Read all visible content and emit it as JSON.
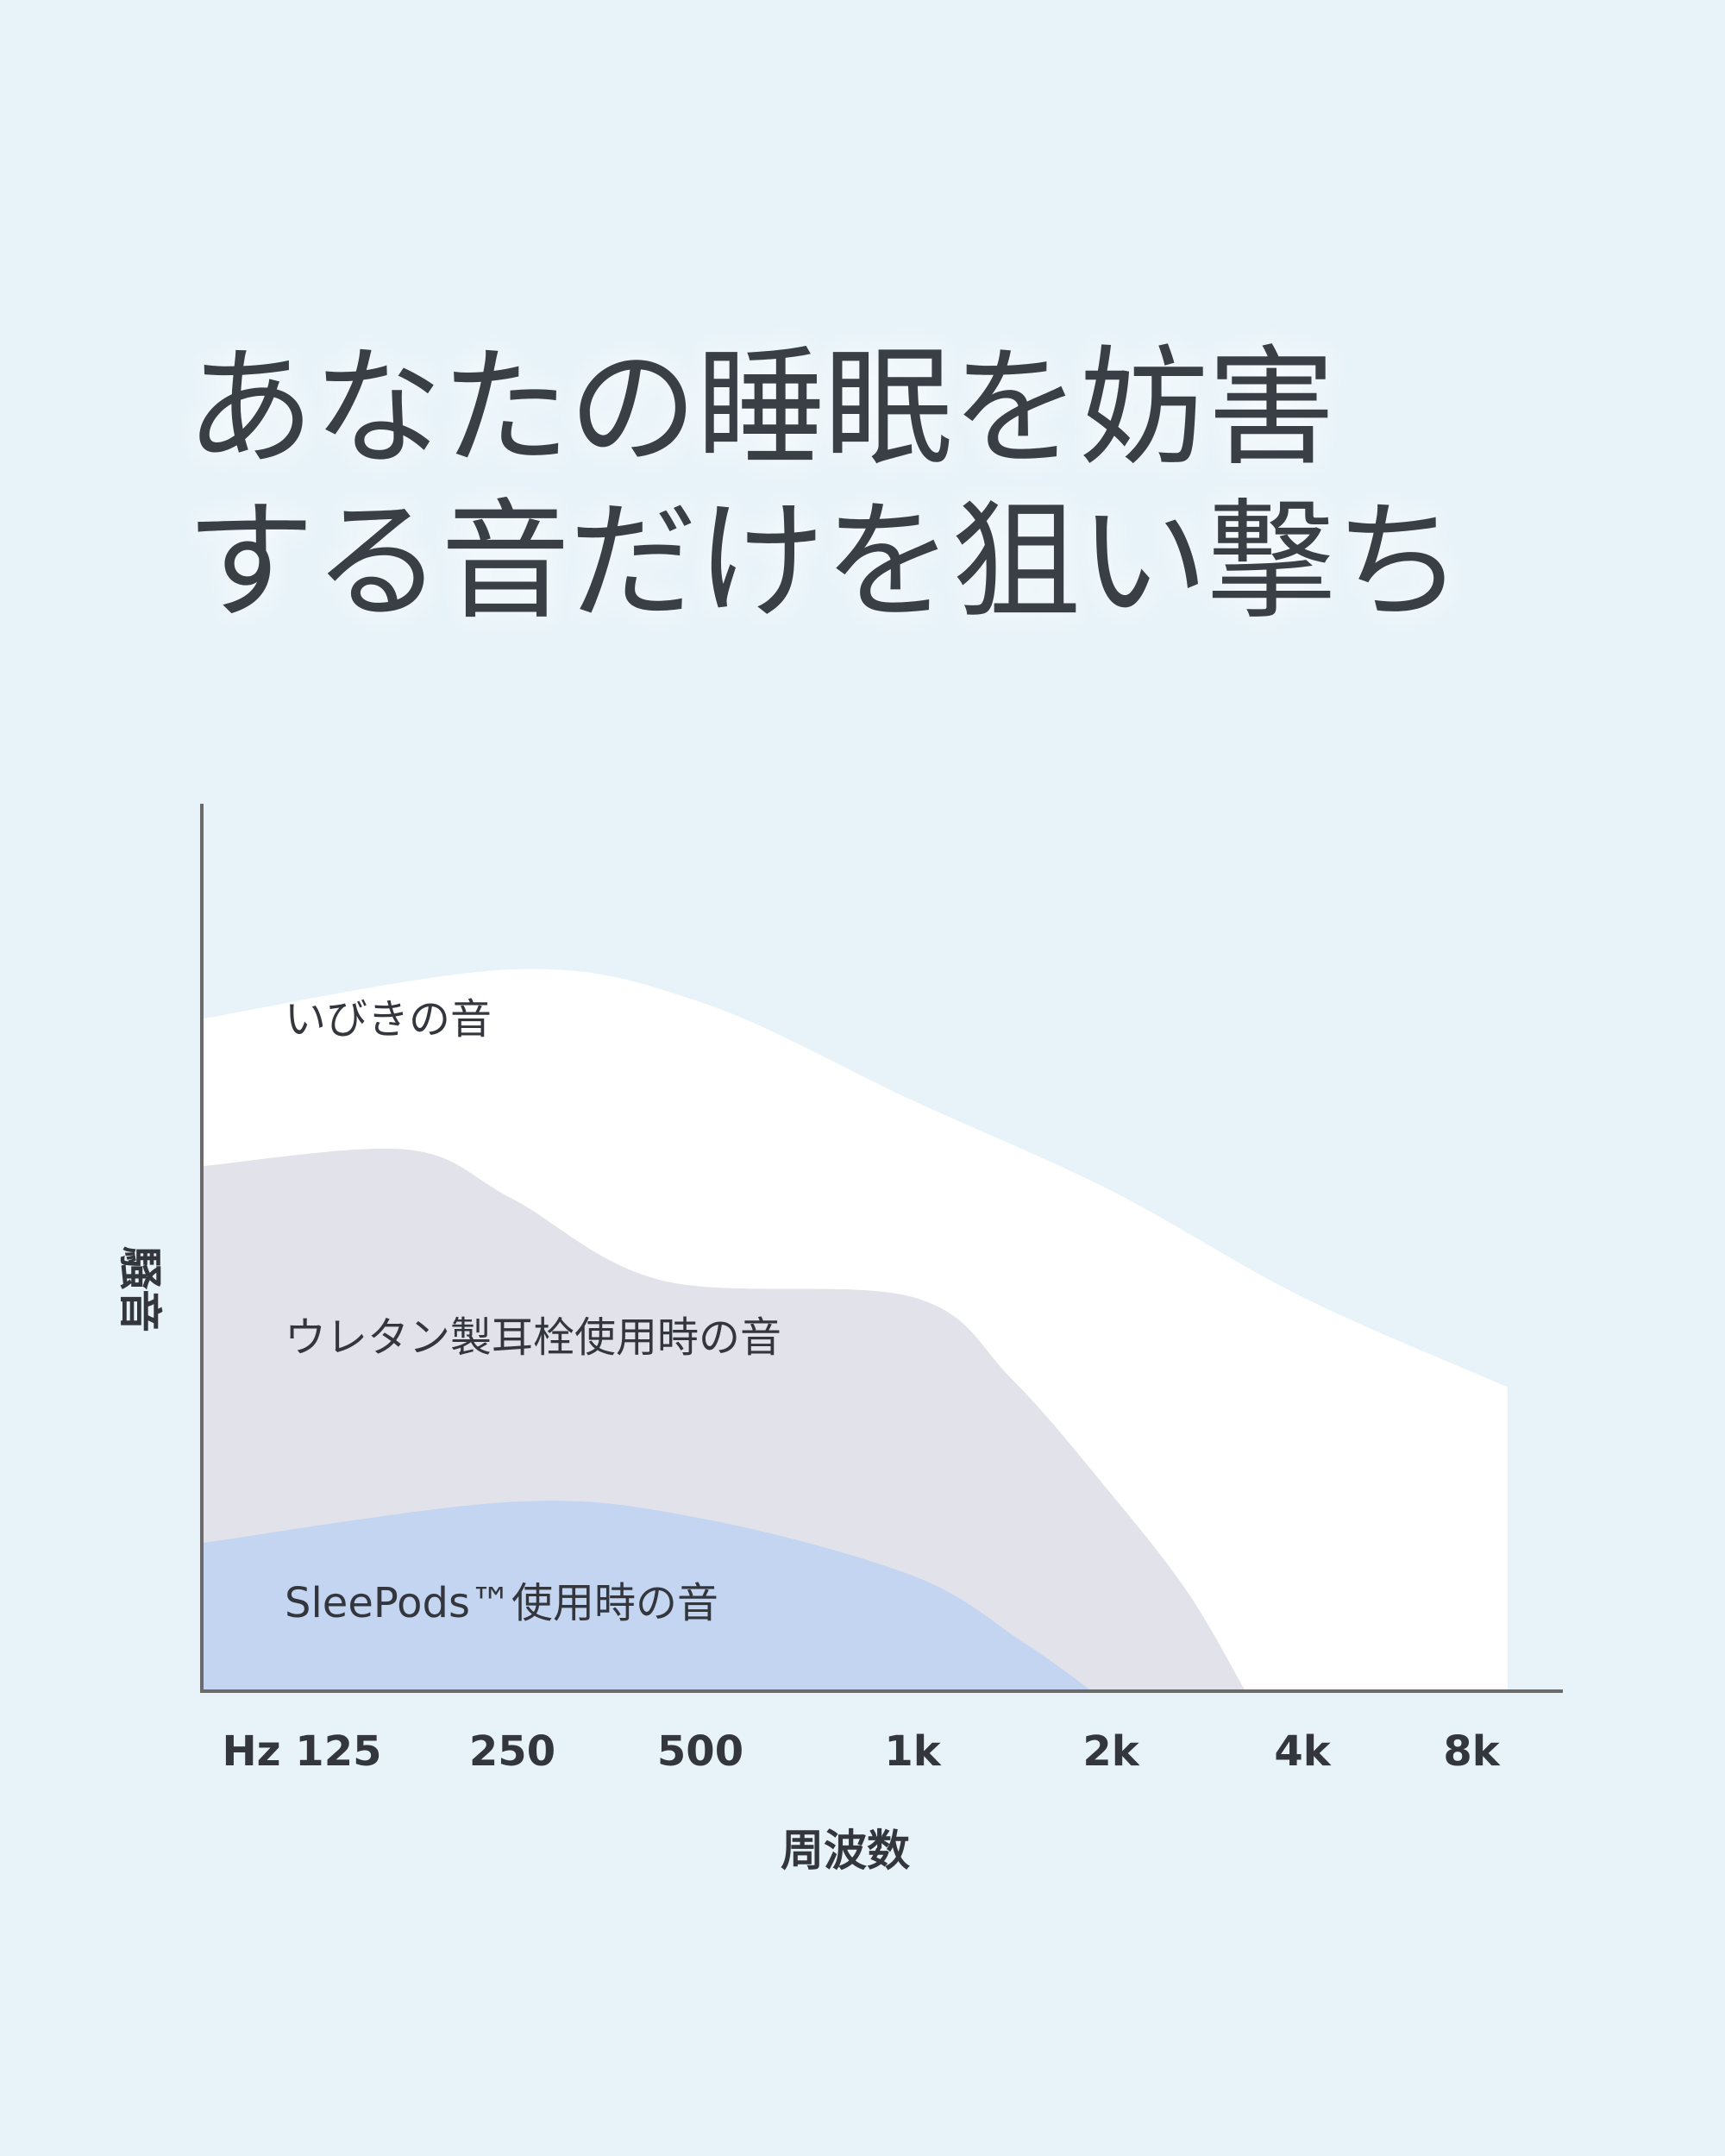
{
  "headline": {
    "line1": "あなたの睡眠を妨害",
    "line2": "する音だけを狙い撃ち"
  },
  "chart_data": {
    "type": "area",
    "xlabel": "周波数",
    "ylabel": "騒音",
    "categories": [
      "Hz 125",
      "250",
      "500",
      "1k",
      "2k",
      "4k",
      "8k"
    ],
    "y_range": [
      0,
      100
    ],
    "grid": false,
    "legend": "inline labels",
    "colors": {
      "snore": "#ffffff",
      "urethane": "#e1e2ea",
      "sleepods": "#c3d5f1",
      "axis": "#6a6a6a"
    },
    "series": [
      {
        "name": "いびきの音",
        "key": "snore",
        "points": [
          [
            0,
            82
          ],
          [
            1,
            88
          ],
          [
            2,
            84
          ],
          [
            3,
            72
          ],
          [
            4,
            61
          ],
          [
            5,
            48
          ],
          [
            6,
            37
          ]
        ]
      },
      {
        "name": "ウレタン製耳栓使用時の音",
        "key": "urethane",
        "points": [
          [
            0,
            64
          ],
          [
            0.5,
            66
          ],
          [
            1,
            60
          ],
          [
            1.8,
            50
          ],
          [
            3,
            48
          ],
          [
            3.5,
            38
          ],
          [
            4,
            24
          ],
          [
            4.4,
            12
          ],
          [
            4.7,
            0
          ]
        ]
      },
      {
        "name": "SleePods™使用時の音",
        "key": "sleepods",
        "points": [
          [
            0,
            18
          ],
          [
            1,
            23
          ],
          [
            2,
            21
          ],
          [
            3,
            14
          ],
          [
            3.55,
            6
          ],
          [
            3.9,
            0
          ]
        ]
      }
    ]
  }
}
